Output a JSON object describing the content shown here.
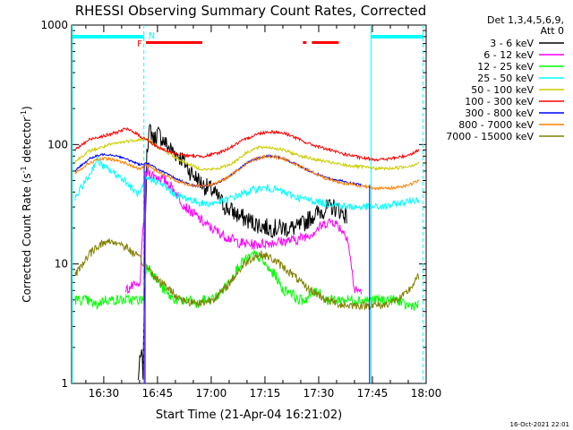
{
  "chart_data": {
    "type": "line",
    "title": "RHESSI Observing Summary Count Rates, Corrected",
    "xlabel": "Start Time (21-Apr-04 16:21:02)",
    "ylabel_main": "Corrected Count Rate (s",
    "ylabel_sup1": "-1",
    "ylabel_mid": " detector",
    "ylabel_sup2": "-1",
    "ylabel_end": ")",
    "yscale": "log",
    "xlim": [
      21.03,
      120
    ],
    "ylim": [
      1,
      1000
    ],
    "x_unit": "minutes after 16:00",
    "x_ticks": [
      {
        "x": 30,
        "label": "16:30"
      },
      {
        "x": 45,
        "label": "16:45"
      },
      {
        "x": 60,
        "label": "17:00"
      },
      {
        "x": 75,
        "label": "17:15"
      },
      {
        "x": 90,
        "label": "17:30"
      },
      {
        "x": 105,
        "label": "17:45"
      },
      {
        "x": 120,
        "label": "18:00"
      }
    ],
    "y_ticks": [
      {
        "y": 1,
        "label": "1"
      },
      {
        "y": 10,
        "label": "10"
      },
      {
        "y": 100,
        "label": "100"
      },
      {
        "y": 1000,
        "label": "1000"
      }
    ],
    "legend_header": [
      "Det 1,3,4,5,6,9,",
      "Att 0"
    ],
    "legend_position": "right",
    "timestamp": "16-Oct-2021 22:01",
    "series": [
      {
        "name": "3 - 6 keV",
        "color": "#000000",
        "x": [
          39.5,
          40,
          40.5,
          41,
          42,
          43,
          44,
          45,
          46,
          48,
          50,
          52,
          54,
          56,
          58,
          60,
          64,
          68,
          72,
          76,
          80,
          84,
          86,
          88,
          90,
          92,
          94,
          96,
          98
        ],
        "y": [
          1.05,
          1.4,
          1.8,
          1.2,
          95,
          135,
          110,
          125,
          115,
          95,
          85,
          75,
          60,
          52,
          45,
          42,
          30,
          25,
          22,
          20,
          20,
          20,
          22,
          25,
          27,
          29,
          30,
          28,
          25
        ]
      },
      {
        "name": "6 - 12 keV",
        "color": "#ff00ff",
        "x": [
          36,
          38,
          40,
          42,
          44,
          46,
          48,
          50,
          52,
          54,
          56,
          58,
          60,
          64,
          68,
          72,
          76,
          80,
          84,
          86,
          88,
          90,
          92,
          94,
          96,
          98,
          100,
          102
        ],
        "y": [
          6,
          6.5,
          6.5,
          60,
          55,
          52,
          48,
          40,
          32,
          28,
          25,
          22,
          20,
          17,
          15,
          14.5,
          15,
          15.5,
          16,
          17,
          18,
          20,
          22,
          23,
          20,
          17,
          6,
          6
        ]
      },
      {
        "name": "12 - 25 keV",
        "color": "#00ff00",
        "x": [
          22,
          25,
          28,
          30,
          32,
          34,
          36,
          38,
          39,
          40,
          41,
          42,
          44,
          46,
          48,
          50,
          52,
          54,
          56,
          58,
          60,
          62,
          64,
          66,
          68,
          70,
          72,
          74,
          76,
          78,
          80,
          82,
          84,
          86,
          88,
          90,
          92,
          94,
          96,
          98,
          100,
          102,
          104,
          106,
          108,
          110,
          112,
          114,
          116,
          118
        ],
        "y": [
          5,
          5,
          4.5,
          5,
          5,
          5,
          5,
          5,
          5,
          5,
          5,
          10,
          8,
          6.5,
          5.5,
          5,
          4.8,
          5,
          4.5,
          5,
          5,
          5.5,
          6.5,
          8,
          10,
          11,
          12,
          11,
          9,
          8,
          6,
          6,
          5,
          5,
          5.5,
          6,
          5,
          5,
          5,
          5,
          5,
          5,
          5,
          5,
          5,
          5,
          5,
          4.5,
          4.5,
          4.5
        ]
      },
      {
        "name": "25 - 50 keV",
        "color": "#00ffff",
        "x": [
          22,
          24,
          26,
          28,
          30,
          32,
          34,
          36,
          38,
          40,
          42,
          44,
          46,
          48,
          50,
          52,
          54,
          56,
          58,
          60,
          62,
          64,
          66,
          68,
          70,
          72,
          74,
          76,
          78,
          80,
          82,
          84,
          86,
          88,
          90,
          92,
          94,
          96,
          98,
          100,
          102,
          104,
          106,
          108,
          110,
          112,
          114,
          116,
          118
        ],
        "y": [
          35,
          45,
          55,
          75,
          65,
          60,
          55,
          50,
          42,
          38,
          52,
          50,
          47,
          42,
          38,
          36,
          35,
          33,
          32,
          32,
          33,
          34,
          36,
          38,
          40,
          42,
          43,
          43,
          42,
          40,
          38,
          36,
          35,
          34,
          33,
          32,
          32,
          31,
          30,
          30,
          30,
          30,
          30,
          30,
          31,
          32,
          33,
          34,
          35
        ]
      },
      {
        "name": "50 - 100 keV",
        "color": "#cccc00",
        "x": [
          22,
          24,
          26,
          28,
          30,
          32,
          34,
          36,
          38,
          40,
          42,
          44,
          46,
          48,
          50,
          52,
          54,
          56,
          58,
          60,
          62,
          64,
          66,
          68,
          70,
          72,
          74,
          76,
          78,
          80,
          82,
          84,
          86,
          88,
          90,
          92,
          94,
          96,
          98,
          100,
          102,
          104,
          106,
          108,
          110,
          112,
          114,
          116,
          118
        ],
        "y": [
          72,
          80,
          88,
          92,
          96,
          100,
          103,
          106,
          108,
          110,
          112,
          100,
          92,
          85,
          78,
          72,
          68,
          64,
          62,
          62,
          63,
          66,
          70,
          78,
          86,
          92,
          95,
          95,
          93,
          90,
          86,
          82,
          79,
          76,
          74,
          72,
          70,
          68,
          67,
          66,
          65,
          64,
          63,
          63,
          63,
          64,
          65,
          67,
          70
        ]
      },
      {
        "name": "100 - 300 keV",
        "color": "#ff0000",
        "x": [
          22,
          24,
          26,
          28,
          30,
          32,
          34,
          36,
          38,
          40,
          42,
          44,
          46,
          48,
          50,
          52,
          54,
          56,
          58,
          60,
          62,
          64,
          66,
          68,
          70,
          72,
          74,
          76,
          78,
          80,
          82,
          84,
          86,
          88,
          90,
          92,
          94,
          96,
          98,
          100,
          102,
          104,
          106,
          108,
          110,
          112,
          114,
          116,
          118
        ],
        "y": [
          90,
          100,
          110,
          115,
          118,
          122,
          128,
          135,
          130,
          118,
          110,
          100,
          92,
          87,
          84,
          82,
          80,
          80,
          80,
          82,
          85,
          90,
          97,
          105,
          112,
          120,
          125,
          128,
          127,
          125,
          120,
          112,
          105,
          100,
          96,
          92,
          88,
          85,
          82,
          80,
          77,
          76,
          75,
          75,
          76,
          78,
          80,
          84,
          90
        ]
      },
      {
        "name": "300 - 800 keV",
        "color": "#0000ff",
        "x": [
          22,
          24,
          26,
          28,
          30,
          32,
          34,
          36,
          38,
          40,
          42,
          44,
          46,
          48,
          50,
          52,
          54,
          56,
          58,
          60,
          62,
          64,
          66,
          68,
          70,
          72,
          74,
          76,
          78,
          80,
          82,
          84,
          86,
          88,
          90,
          92,
          94,
          96,
          98,
          100,
          102
        ],
        "y": [
          60,
          68,
          76,
          80,
          83,
          82,
          80,
          76,
          72,
          68,
          70,
          65,
          60,
          56,
          52,
          49,
          46,
          45,
          45,
          46,
          48,
          52,
          57,
          63,
          70,
          75,
          78,
          80,
          79,
          76,
          72,
          68,
          63,
          59,
          56,
          53,
          51,
          50,
          48,
          47,
          46
        ]
      },
      {
        "name": "800 - 7000 keV",
        "color": "#ff8000",
        "x": [
          22,
          24,
          26,
          28,
          30,
          32,
          34,
          36,
          38,
          40,
          42,
          44,
          46,
          48,
          50,
          52,
          54,
          56,
          58,
          60,
          62,
          64,
          66,
          68,
          70,
          72,
          74,
          76,
          78,
          80,
          82,
          84,
          86,
          88,
          90,
          92,
          94,
          96,
          98,
          100,
          102,
          104,
          106,
          108,
          110,
          112,
          114,
          116,
          118
        ],
        "y": [
          58,
          64,
          70,
          74,
          76,
          75,
          73,
          70,
          66,
          62,
          68,
          62,
          58,
          54,
          50,
          48,
          46,
          45,
          45,
          46,
          48,
          52,
          57,
          63,
          70,
          75,
          78,
          80,
          79,
          76,
          72,
          67,
          63,
          59,
          55,
          52,
          50,
          48,
          47,
          46,
          45,
          44,
          43,
          43,
          43,
          44,
          45,
          47,
          50
        ]
      },
      {
        "name": "7000 - 15000 keV",
        "color": "#808000",
        "x": [
          22,
          24,
          26,
          28,
          30,
          32,
          34,
          36,
          38,
          40,
          42,
          44,
          46,
          48,
          50,
          52,
          54,
          56,
          58,
          60,
          62,
          64,
          66,
          68,
          70,
          72,
          74,
          76,
          78,
          80,
          82,
          84,
          86,
          88,
          90,
          92,
          94,
          96,
          98,
          100,
          102,
          104,
          106,
          108,
          110,
          112,
          114,
          116,
          118
        ],
        "y": [
          8,
          10,
          12,
          14,
          15,
          15.5,
          15,
          14,
          12.5,
          11,
          9.5,
          8,
          7,
          6.3,
          5.5,
          5,
          4.8,
          4.7,
          4.8,
          5,
          5.5,
          6.3,
          7.5,
          9,
          10.5,
          11.5,
          12,
          11.5,
          10.5,
          9.5,
          8.5,
          7.5,
          6.5,
          6,
          5.5,
          5,
          4.8,
          4.6,
          4.5,
          4.5,
          4.5,
          4.5,
          4.5,
          4.5,
          4.8,
          5,
          5.5,
          6.5,
          8
        ]
      }
    ],
    "annotations": {
      "cyan_solid_vlines": [
        21.2,
        104.6
      ],
      "cyan_dashed_vlines": [
        41.2,
        119.1
      ],
      "night_bars": [
        {
          "x0": 21.2,
          "x1": 41.2
        },
        {
          "x0": 104.6,
          "x1": 119.1
        }
      ],
      "night_label": "N",
      "flare_bars": [
        {
          "x0": 41.8,
          "x1": 57.5
        },
        {
          "x0": 85.6,
          "x1": 86.6
        },
        {
          "x0": 88.1,
          "x1": 95.6
        }
      ],
      "flare_label": "F",
      "blue_vlines": [
        41.3,
        104.2
      ],
      "magenta_vline": 41.6
    }
  }
}
